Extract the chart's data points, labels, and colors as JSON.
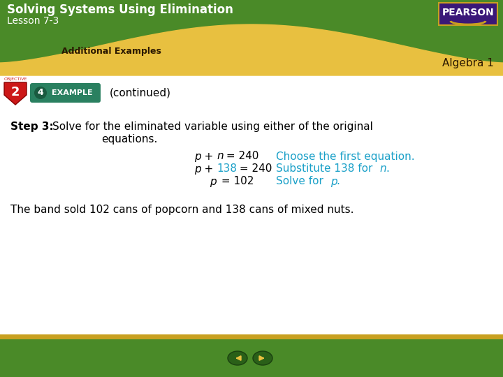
{
  "title": "Solving Systems Using Elimination",
  "lesson": "Lesson 7-3",
  "subtitle": "Additional Examples",
  "algebra": "Algebra 1",
  "header_green": "#4a8a28",
  "header_yellow": "#e8c040",
  "bg_white": "#ffffff",
  "footer_green": "#4a8a28",
  "footer_yellow": "#c8a020",
  "pearson_purple": "#3a1878",
  "pearson_text": "PEARSON",
  "blue_color": "#1aa0c8",
  "obj_red": "#cc1818",
  "example_teal": "#2a8060",
  "nav_dark_green": "#2a6018",
  "dark_yellow": "#c8a020"
}
